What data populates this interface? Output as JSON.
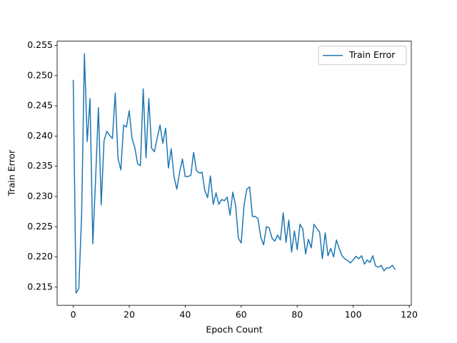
{
  "chart_data": {
    "type": "line",
    "xlabel": "Epoch Count",
    "ylabel": "Train Error",
    "x": [
      0,
      1,
      2,
      3,
      4,
      5,
      6,
      7,
      8,
      9,
      10,
      11,
      12,
      13,
      14,
      15,
      16,
      17,
      18,
      19,
      20,
      21,
      22,
      23,
      24,
      25,
      26,
      27,
      28,
      29,
      30,
      31,
      32,
      33,
      34,
      35,
      36,
      37,
      38,
      39,
      40,
      41,
      42,
      43,
      44,
      45,
      46,
      47,
      48,
      49,
      50,
      51,
      52,
      53,
      54,
      55,
      56,
      57,
      58,
      59,
      60,
      61,
      62,
      63,
      64,
      65,
      66,
      67,
      68,
      69,
      70,
      71,
      72,
      73,
      74,
      75,
      76,
      77,
      78,
      79,
      80,
      81,
      82,
      83,
      84,
      85,
      86,
      87,
      88,
      89,
      90,
      91,
      92,
      93,
      94,
      95,
      96,
      97,
      98,
      99,
      100,
      101,
      102,
      103,
      104,
      105,
      106,
      107,
      108,
      109,
      110,
      111,
      112,
      113,
      114,
      115
    ],
    "series": [
      {
        "name": "Train Error",
        "color": "#1f77b4",
        "values": [
          0.2493,
          0.214,
          0.2148,
          0.227,
          0.2536,
          0.2391,
          0.2462,
          0.2222,
          0.233,
          0.2447,
          0.2286,
          0.2392,
          0.2408,
          0.2401,
          0.2396,
          0.2471,
          0.2363,
          0.2344,
          0.2418,
          0.2415,
          0.2442,
          0.2396,
          0.2381,
          0.2354,
          0.2351,
          0.2478,
          0.2364,
          0.2462,
          0.238,
          0.2374,
          0.2397,
          0.2418,
          0.2388,
          0.2413,
          0.2347,
          0.2379,
          0.2333,
          0.2312,
          0.234,
          0.2362,
          0.2333,
          0.2333,
          0.2335,
          0.2373,
          0.2343,
          0.2339,
          0.234,
          0.231,
          0.2298,
          0.2334,
          0.2287,
          0.2306,
          0.2287,
          0.2295,
          0.2293,
          0.2299,
          0.2269,
          0.2307,
          0.2285,
          0.2231,
          0.2223,
          0.2285,
          0.2312,
          0.2316,
          0.2267,
          0.2267,
          0.2263,
          0.2232,
          0.222,
          0.225,
          0.2248,
          0.2231,
          0.2226,
          0.2236,
          0.2228,
          0.2273,
          0.2224,
          0.2261,
          0.2208,
          0.2243,
          0.2212,
          0.2254,
          0.2246,
          0.2205,
          0.2229,
          0.2215,
          0.2254,
          0.2247,
          0.2241,
          0.2197,
          0.224,
          0.2202,
          0.2214,
          0.22,
          0.2228,
          0.2214,
          0.2202,
          0.2197,
          0.2194,
          0.219,
          0.2195,
          0.2201,
          0.2197,
          0.2202,
          0.2188,
          0.2195,
          0.2191,
          0.2202,
          0.2185,
          0.2183,
          0.2186,
          0.2177,
          0.2182,
          0.2182,
          0.2186,
          0.2179
        ]
      }
    ],
    "xlim": [
      -5.75,
      120.75
    ],
    "xticks": [
      0,
      20,
      40,
      60,
      80,
      100,
      120
    ],
    "ylim": [
      0.212,
      0.2557
    ],
    "yticks": [
      0.215,
      {
        "value": 0.22,
        "label": "0.220"
      },
      0.225,
      {
        "value": 0.23,
        "label": "0.230"
      },
      0.235,
      {
        "value": 0.24,
        "label": "0.240"
      },
      0.245,
      {
        "value": 0.25,
        "label": "0.250"
      },
      0.255
    ],
    "legend": "upper right"
  }
}
